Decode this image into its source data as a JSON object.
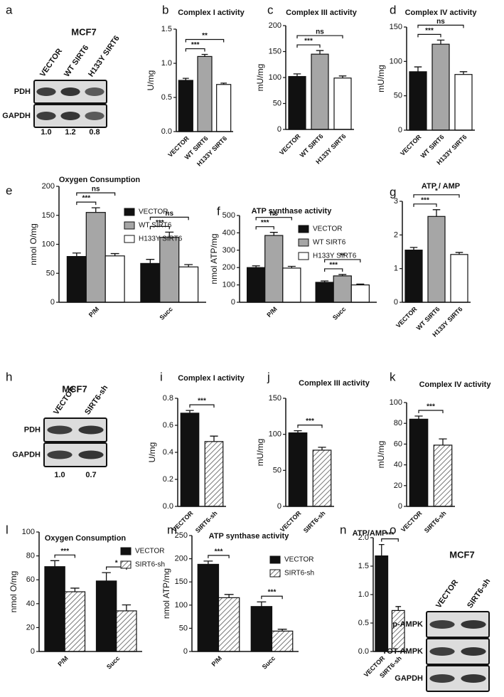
{
  "chart_data": [
    {
      "type": "bar",
      "panel": "b",
      "title": "Complex I activity",
      "ylabel": "U/mg",
      "categories": [
        "VECTOR",
        "WT SIRT6",
        "H133Y SIRT6"
      ],
      "values": [
        0.75,
        1.1,
        0.69
      ],
      "errors": [
        0.03,
        0.03,
        0.02
      ],
      "colors": [
        "#111111",
        "#a6a6a6",
        "#ffffff"
      ],
      "hatch": [
        false,
        false,
        false
      ],
      "ylim": [
        0,
        1.5
      ],
      "yticks": [
        {
          "value": 0,
          "label": "0.0"
        },
        0.5,
        {
          "value": 1,
          "label": "1.0"
        },
        1.5
      ],
      "significance": [
        {
          "from": 0,
          "to": 1,
          "label": "***"
        },
        {
          "from": 0,
          "to": 2,
          "label": "**"
        }
      ]
    },
    {
      "type": "bar",
      "panel": "c",
      "title": "Complex III activity",
      "ylabel": "mU/mg",
      "categories": [
        "VECTOR",
        "WT SIRT6",
        "H133Y SIRT6"
      ],
      "values": [
        102,
        145,
        99
      ],
      "errors": [
        5,
        7,
        4
      ],
      "colors": [
        "#111111",
        "#a6a6a6",
        "#ffffff"
      ],
      "hatch": [
        false,
        false,
        false
      ],
      "ylim": [
        0,
        200
      ],
      "yticks": [
        0,
        50,
        100,
        150,
        200
      ],
      "significance": [
        {
          "from": 0,
          "to": 1,
          "label": "***"
        },
        {
          "from": 0,
          "to": 2,
          "label": "ns"
        }
      ]
    },
    {
      "type": "bar",
      "panel": "d",
      "title": "Complex IV activity",
      "ylabel": "mU/mg",
      "categories": [
        "VECTOR",
        "WT SIRT6",
        "H133Y SIRT6"
      ],
      "values": [
        85,
        125,
        81
      ],
      "errors": [
        7,
        6,
        4
      ],
      "colors": [
        "#111111",
        "#a6a6a6",
        "#ffffff"
      ],
      "hatch": [
        false,
        false,
        false
      ],
      "ylim": [
        0,
        150
      ],
      "yticks": [
        0,
        50,
        100,
        150
      ],
      "significance": [
        {
          "from": 0,
          "to": 1,
          "label": "***"
        },
        {
          "from": 0,
          "to": 2,
          "label": "ns"
        }
      ]
    },
    {
      "type": "grouped-bar",
      "panel": "e",
      "title": "Oxygen Consumption",
      "ylabel": "nmol O/mg",
      "categories": [
        "P/M",
        "Succ"
      ],
      "series": [
        {
          "name": "VECTOR",
          "color": "#111111",
          "hatch": false,
          "values": [
            79,
            67
          ],
          "errors": [
            6,
            7
          ]
        },
        {
          "name": "WT SIRT6",
          "color": "#a6a6a6",
          "hatch": false,
          "values": [
            155,
            112
          ],
          "errors": [
            8,
            9
          ]
        },
        {
          "name": "H133Y SIRT6",
          "color": "#ffffff",
          "hatch": false,
          "values": [
            80,
            61
          ],
          "errors": [
            4,
            4
          ]
        }
      ],
      "ylim": [
        0,
        200
      ],
      "yticks": [
        0,
        50,
        100,
        150,
        200
      ],
      "legend": "upper right",
      "significance": [
        {
          "group": 0,
          "from": 0,
          "to": 1,
          "label": "***"
        },
        {
          "group": 0,
          "from": 0,
          "to": 2,
          "label": "ns"
        },
        {
          "group": 1,
          "from": 0,
          "to": 1,
          "label": "***"
        },
        {
          "group": 1,
          "from": 0,
          "to": 2,
          "label": "ns"
        }
      ]
    },
    {
      "type": "grouped-bar",
      "panel": "f",
      "title": "ATP synthase activity",
      "ylabel": "nmol ATP/mg",
      "categories": [
        "P/M",
        "Succ"
      ],
      "series": [
        {
          "name": "VECTOR",
          "color": "#111111",
          "hatch": false,
          "values": [
            200,
            115
          ],
          "errors": [
            10,
            8
          ]
        },
        {
          "name": "WT SIRT6",
          "color": "#a6a6a6",
          "hatch": false,
          "values": [
            385,
            152
          ],
          "errors": [
            18,
            8
          ]
        },
        {
          "name": "H133Y SIRT6",
          "color": "#ffffff",
          "hatch": false,
          "values": [
            197,
            100
          ],
          "errors": [
            10,
            5
          ]
        }
      ],
      "ylim": [
        0,
        500
      ],
      "yticks": [
        0,
        100,
        200,
        300,
        400,
        500
      ],
      "legend": "upper right",
      "significance": [
        {
          "group": 0,
          "from": 0,
          "to": 1,
          "label": "***"
        },
        {
          "group": 0,
          "from": 0,
          "to": 2,
          "label": "ns"
        },
        {
          "group": 1,
          "from": 0,
          "to": 1,
          "label": "***"
        },
        {
          "group": 1,
          "from": 0,
          "to": 2,
          "label": "**"
        }
      ]
    },
    {
      "type": "bar",
      "panel": "g",
      "title": "ATP / AMP",
      "categories": [
        "VECTOR",
        "WT SIRT6",
        "H133Y SIRT6"
      ],
      "values": [
        1.55,
        2.55,
        1.42
      ],
      "errors": [
        0.08,
        0.2,
        0.06
      ],
      "colors": [
        "#111111",
        "#a6a6a6",
        "#ffffff"
      ],
      "hatch": [
        false,
        false,
        false
      ],
      "ylim": [
        0,
        3
      ],
      "yticks": [
        0,
        1,
        2,
        3
      ],
      "significance": [
        {
          "from": 0,
          "to": 1,
          "label": "***"
        },
        {
          "from": 0,
          "to": 2,
          "label": "*"
        }
      ]
    },
    {
      "type": "bar",
      "panel": "i",
      "title": "Complex I activity",
      "ylabel": "U/mg",
      "categories": [
        "VECTOR",
        "SIRT6-sh"
      ],
      "values": [
        0.69,
        0.48
      ],
      "errors": [
        0.02,
        0.04
      ],
      "colors": [
        "#111111",
        "#ffffff"
      ],
      "hatch": [
        false,
        true
      ],
      "ylim": [
        0,
        0.8
      ],
      "yticks": [
        {
          "value": 0,
          "label": "0.0"
        },
        0.2,
        0.4,
        0.6,
        0.8
      ],
      "significance": [
        {
          "from": 0,
          "to": 1,
          "label": "***"
        }
      ]
    },
    {
      "type": "bar",
      "panel": "j",
      "title": "Complex III activity",
      "ylabel": "mU/mg",
      "categories": [
        "VECTOR",
        "SIRT6-sh"
      ],
      "values": [
        102,
        78
      ],
      "errors": [
        3,
        4
      ],
      "colors": [
        "#111111",
        "#ffffff"
      ],
      "hatch": [
        false,
        true
      ],
      "ylim": [
        0,
        150
      ],
      "yticks": [
        0,
        50,
        100,
        150
      ],
      "significance": [
        {
          "from": 0,
          "to": 1,
          "label": "***"
        }
      ]
    },
    {
      "type": "bar",
      "panel": "k",
      "title": "Complex IV activity",
      "ylabel": "mU/mg",
      "categories": [
        "VECTOR",
        "SIRT6-sh"
      ],
      "values": [
        84,
        59
      ],
      "errors": [
        3,
        6
      ],
      "colors": [
        "#111111",
        "#ffffff"
      ],
      "hatch": [
        false,
        true
      ],
      "ylim": [
        0,
        100
      ],
      "yticks": [
        0,
        20,
        40,
        60,
        80,
        100
      ],
      "significance": [
        {
          "from": 0,
          "to": 1,
          "label": "***"
        }
      ]
    },
    {
      "type": "grouped-bar",
      "panel": "l",
      "title": "Oxygen Consumption",
      "ylabel": "nmol O/mg",
      "categories": [
        "P/M",
        "Succ"
      ],
      "series": [
        {
          "name": "VECTOR",
          "color": "#111111",
          "hatch": false,
          "values": [
            71,
            59
          ],
          "errors": [
            5,
            7
          ]
        },
        {
          "name": "SIRT6-sh",
          "color": "#ffffff",
          "hatch": true,
          "values": [
            50,
            34
          ],
          "errors": [
            3,
            5
          ]
        }
      ],
      "ylim": [
        0,
        100
      ],
      "yticks": [
        0,
        20,
        40,
        60,
        80,
        100
      ],
      "legend": "upper right",
      "significance": [
        {
          "group": 0,
          "from": 0,
          "to": 1,
          "label": "***"
        },
        {
          "group": 1,
          "from": 0,
          "to": 1,
          "label": "*"
        }
      ]
    },
    {
      "type": "grouped-bar",
      "panel": "m",
      "title": "ATP synthase activity",
      "ylabel": "nmol ATP/mg",
      "categories": [
        "P/M",
        "Succ"
      ],
      "series": [
        {
          "name": "VECTOR",
          "color": "#111111",
          "hatch": false,
          "values": [
            188,
            97
          ],
          "errors": [
            7,
            10
          ]
        },
        {
          "name": "SIRT6-sh",
          "color": "#ffffff",
          "hatch": true,
          "values": [
            116,
            44
          ],
          "errors": [
            7,
            4
          ]
        }
      ],
      "ylim": [
        0,
        250
      ],
      "yticks": [
        0,
        50,
        100,
        150,
        200,
        250
      ],
      "legend": "upper right",
      "significance": [
        {
          "group": 0,
          "from": 0,
          "to": 1,
          "label": "***"
        },
        {
          "group": 1,
          "from": 0,
          "to": 1,
          "label": "***"
        }
      ]
    },
    {
      "type": "bar",
      "panel": "n",
      "title": "ATP/AMP",
      "categories": [
        "VECTOR",
        "SIRT6-sh"
      ],
      "values": [
        1.68,
        0.72
      ],
      "errors": [
        0.2,
        0.07
      ],
      "colors": [
        "#111111",
        "#ffffff"
      ],
      "hatch": [
        false,
        true
      ],
      "ylim": [
        0,
        2
      ],
      "yticks": [
        {
          "value": 0,
          "label": "0.0"
        },
        0.5,
        {
          "value": 1,
          "label": "1.0"
        },
        1.5,
        {
          "value": 2,
          "label": "2.0"
        }
      ],
      "significance": [
        {
          "from": 0,
          "to": 1,
          "label": "***"
        }
      ]
    }
  ],
  "blots": [
    {
      "panel": "a",
      "title": "MCF7",
      "lanes": [
        "VECTOR",
        "WT SIRT6",
        "H133Y SIRT6"
      ],
      "rows": [
        "PDH",
        "GAPDH"
      ],
      "quantification": [
        "1.0",
        "1.2",
        "0.8"
      ]
    },
    {
      "panel": "h",
      "title": "MCF7",
      "lanes": [
        "VECTOR",
        "SIRT6-sh"
      ],
      "rows": [
        "PDH",
        "GAPDH"
      ],
      "quantification": [
        "1.0",
        "0.7"
      ]
    },
    {
      "panel": "o",
      "title": "MCF7",
      "lanes": [
        "VECTOR",
        "SIRT6-sh"
      ],
      "rows": [
        "p-AMPK",
        "TOT-AMPK",
        "GAPDH"
      ]
    }
  ]
}
